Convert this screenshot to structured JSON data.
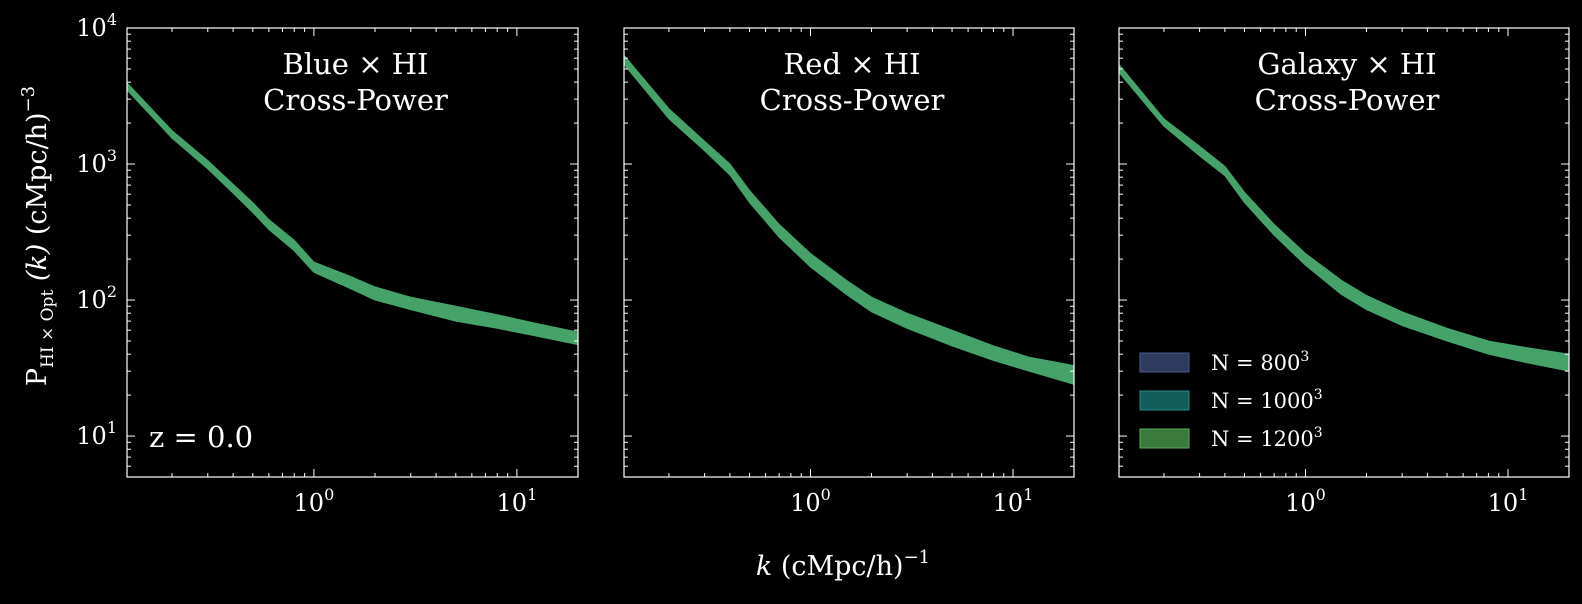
{
  "figure": {
    "xlabel": "(cMpc/h)",
    "xlabel_var": "k",
    "xlabel_exp": "−1",
    "ylabel_main": "P",
    "ylabel_sub": "HI × Opt",
    "ylabel_mid": " (k) ",
    "ylabel_unit": "(cMpc/h)",
    "ylabel_exp": "−3",
    "redshift_label": "z = 0.0",
    "background": "#000000",
    "axis_color": "#ffffff"
  },
  "legend": {
    "placement": "lower-left of third panel",
    "entries": [
      {
        "base": "N = 800",
        "exp": "3",
        "color": "#2e3b5e",
        "edge": "#4a5a8a"
      },
      {
        "base": "N = 1000",
        "exp": "3",
        "color": "#135d5a",
        "edge": "#2a8a85"
      },
      {
        "base": "N = 1200",
        "exp": "3",
        "color": "#3a7a3c",
        "edge": "#5aaa5c"
      }
    ]
  },
  "chart_data": [
    {
      "type": "area",
      "title_line1": "Blue × HI",
      "title_line2": "Cross-Power",
      "xscale": "log",
      "yscale": "log",
      "xlim": [
        0.12,
        20
      ],
      "ylim": [
        5,
        10000
      ],
      "band_color": "#45a36a",
      "x": [
        0.12,
        0.2,
        0.3,
        0.4,
        0.5,
        0.6,
        0.8,
        1.0,
        1.5,
        2.0,
        3.0,
        5.0,
        8.0,
        12.0,
        20.0
      ],
      "y_low": [
        3500,
        1550,
        920,
        610,
        440,
        330,
        230,
        160,
        122,
        100,
        85,
        70,
        62,
        55,
        47
      ],
      "y_high": [
        3950,
        1760,
        1060,
        710,
        520,
        390,
        275,
        190,
        150,
        125,
        105,
        90,
        78,
        68,
        58
      ]
    },
    {
      "type": "area",
      "title_line1": "Red × HI",
      "title_line2": "Cross-Power",
      "xscale": "log",
      "yscale": "log",
      "xlim": [
        0.12,
        20
      ],
      "ylim": [
        5,
        10000
      ],
      "band_color": "#45a36a",
      "x": [
        0.12,
        0.2,
        0.3,
        0.4,
        0.5,
        0.7,
        1.0,
        1.5,
        2.0,
        3.0,
        5.0,
        8.0,
        12.0,
        20.0
      ],
      "y_low": [
        5400,
        2150,
        1250,
        830,
        520,
        290,
        175,
        110,
        82,
        62,
        46,
        36,
        30,
        24
      ],
      "y_high": [
        6300,
        2550,
        1470,
        1000,
        640,
        360,
        220,
        140,
        105,
        80,
        60,
        46,
        38,
        33
      ]
    },
    {
      "type": "area",
      "title_line1": "Galaxy × HI",
      "title_line2": "Cross-Power",
      "xscale": "log",
      "yscale": "log",
      "xlim": [
        0.12,
        20
      ],
      "ylim": [
        5,
        10000
      ],
      "band_color": "#45a36a",
      "x": [
        0.12,
        0.2,
        0.3,
        0.4,
        0.5,
        0.7,
        1.0,
        1.5,
        2.0,
        3.0,
        5.0,
        8.0,
        12.0,
        20.0
      ],
      "y_low": [
        4700,
        1900,
        1150,
        820,
        520,
        300,
        180,
        110,
        85,
        65,
        50,
        40,
        35,
        30
      ],
      "y_high": [
        5400,
        2150,
        1350,
        960,
        620,
        360,
        220,
        140,
        108,
        82,
        62,
        50,
        45,
        40
      ]
    }
  ]
}
